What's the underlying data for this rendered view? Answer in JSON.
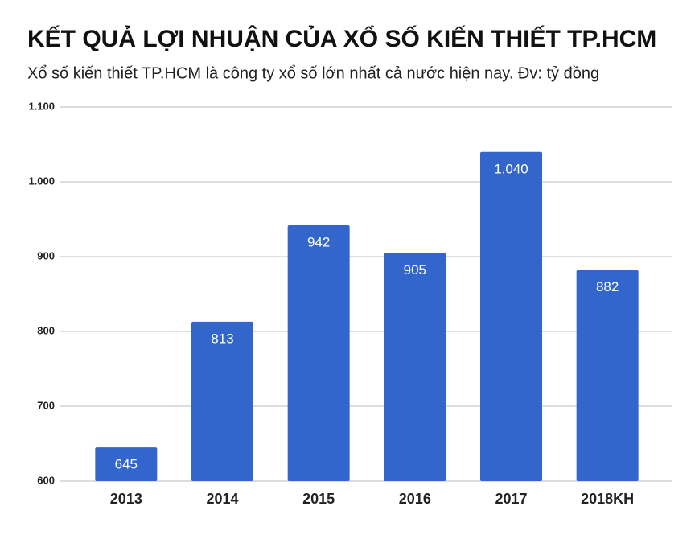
{
  "chart_data": {
    "type": "bar",
    "title": "KẾT QUẢ LỢI NHUẬN CỦA XỔ SỐ KIẾN THIẾT TP.HCM",
    "subtitle": "Xổ số kiến thiết TP.HCM là công ty xổ số lớn nhất cả nước hiện nay. Đv: tỷ đồng",
    "categories": [
      "2013",
      "2014",
      "2015",
      "2016",
      "2017",
      "2018KH"
    ],
    "values": [
      645,
      813,
      942,
      905,
      1040,
      882
    ],
    "value_labels": [
      "645",
      "813",
      "942",
      "905",
      "1.040",
      "882"
    ],
    "color": "#3366cc",
    "ylim": [
      600,
      1100
    ],
    "yticks": [
      600,
      700,
      800,
      900,
      {
        "value": 1000,
        "label": "1.000"
      },
      {
        "value": 1100,
        "label": "1.100"
      }
    ],
    "grid": true
  }
}
